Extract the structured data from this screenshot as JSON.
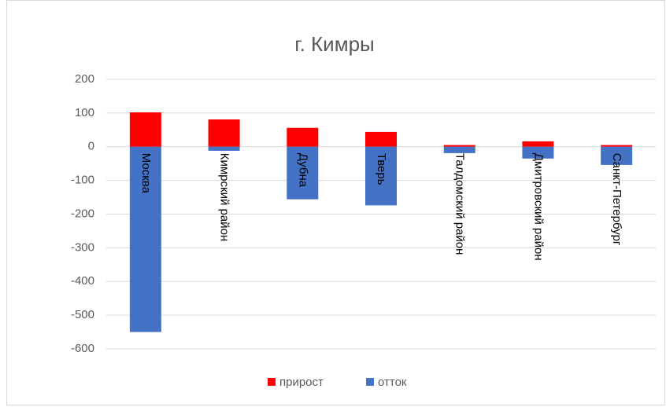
{
  "chart_data": {
    "type": "bar",
    "title": "г. Кимры",
    "categories": [
      "Москва",
      "Кимрский район",
      "Дубна",
      "Тверь",
      "Талдомский район",
      "Дмитровский район",
      "Санкт-Петербург"
    ],
    "series": [
      {
        "name": "прирост",
        "color": "#ff0000",
        "values": [
          102,
          81,
          56,
          44,
          5,
          16,
          5
        ]
      },
      {
        "name": "отток",
        "color": "#4472c4",
        "values": [
          -550,
          -12,
          -156,
          -174,
          -19,
          -35,
          -54
        ]
      }
    ],
    "ylim": [
      -600,
      200
    ],
    "yticks": [
      -600,
      -500,
      -400,
      -300,
      -200,
      -100,
      0,
      100,
      200
    ],
    "grid": true,
    "legend": "bottom"
  }
}
